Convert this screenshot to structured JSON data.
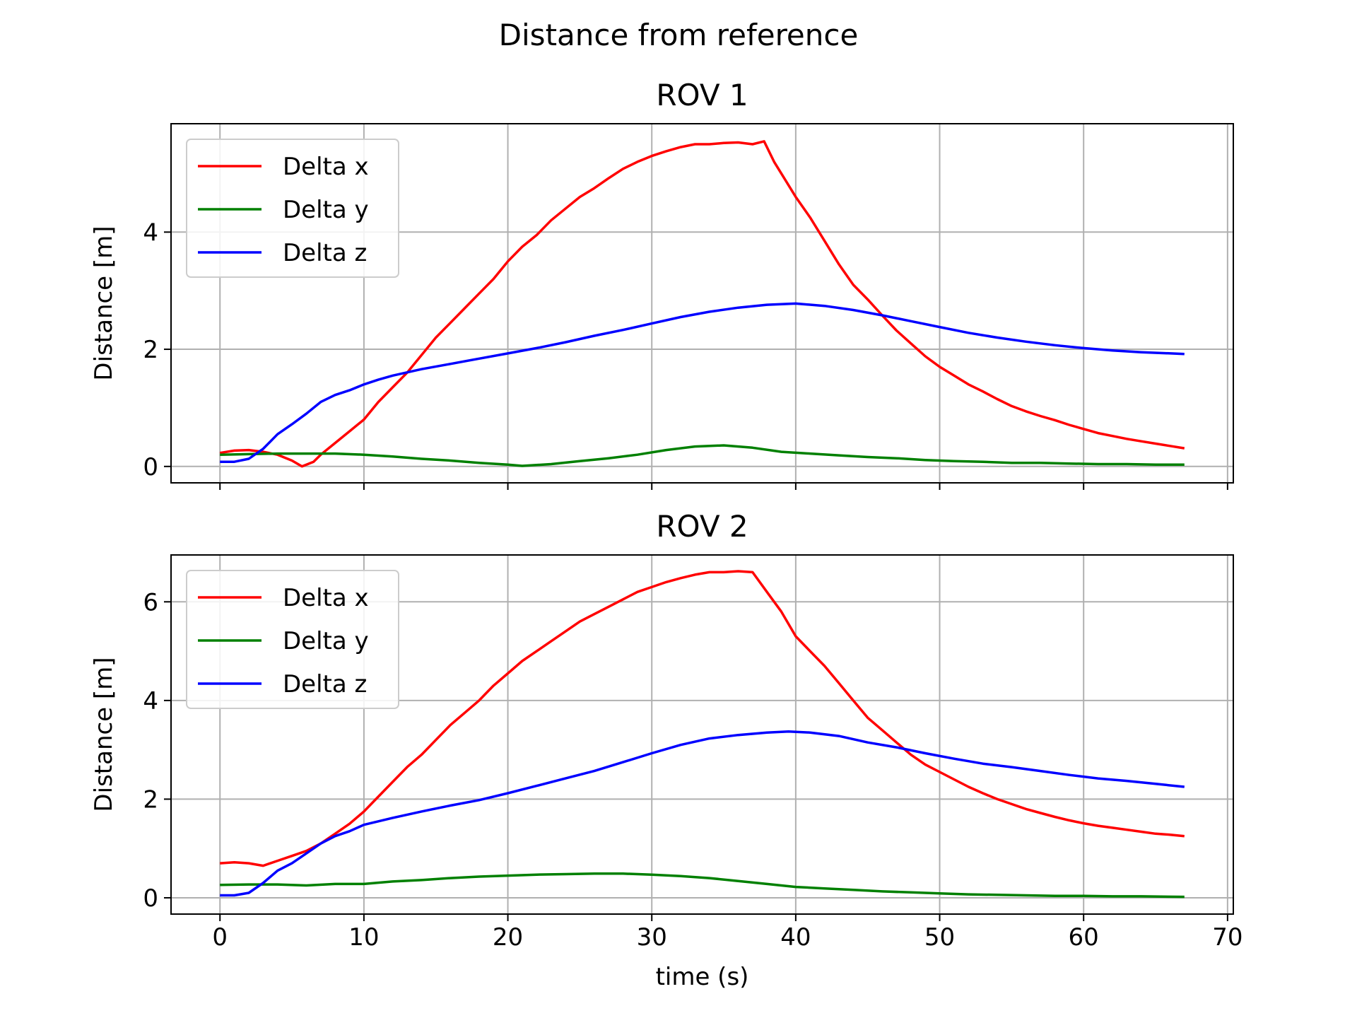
{
  "figure": {
    "title": "Distance from reference"
  },
  "chart_data": [
    {
      "type": "line",
      "title": "ROV 1",
      "xlabel": "",
      "ylabel": "Distance [m]",
      "xlim": [
        -3.4,
        70.4
      ],
      "ylim": [
        -0.28,
        5.85
      ],
      "xticks": [
        0,
        10,
        20,
        30,
        40,
        50,
        60,
        70
      ],
      "yticks": [
        0,
        2,
        4
      ],
      "grid": true,
      "legend": "top-left",
      "show_xticklabels": false,
      "series": [
        {
          "name": "Delta x",
          "color": "#ff0000",
          "x": [
            0,
            1,
            2,
            3,
            4,
            5,
            5.7,
            6.5,
            7,
            8,
            9,
            10,
            11,
            12,
            13,
            14,
            15,
            16,
            17,
            18,
            19,
            20,
            21,
            22,
            23,
            24,
            25,
            26,
            27,
            28,
            29,
            30,
            31,
            32,
            33,
            34,
            35,
            36,
            37,
            37.8,
            38.5,
            39,
            40,
            41,
            42,
            43,
            44,
            45,
            46,
            47,
            48,
            49,
            50,
            51,
            52,
            53,
            54,
            55,
            56,
            57,
            58,
            59,
            60,
            61,
            62,
            63,
            64,
            65,
            66,
            67
          ],
          "y": [
            0.23,
            0.27,
            0.28,
            0.25,
            0.2,
            0.1,
            0.0,
            0.08,
            0.2,
            0.4,
            0.6,
            0.8,
            1.1,
            1.35,
            1.6,
            1.9,
            2.2,
            2.45,
            2.7,
            2.95,
            3.2,
            3.5,
            3.75,
            3.95,
            4.2,
            4.4,
            4.6,
            4.75,
            4.92,
            5.08,
            5.2,
            5.3,
            5.38,
            5.45,
            5.5,
            5.5,
            5.52,
            5.53,
            5.5,
            5.55,
            5.2,
            5.0,
            4.6,
            4.25,
            3.85,
            3.45,
            3.1,
            2.85,
            2.58,
            2.32,
            2.1,
            1.88,
            1.7,
            1.55,
            1.4,
            1.28,
            1.15,
            1.03,
            0.94,
            0.86,
            0.79,
            0.71,
            0.64,
            0.57,
            0.52,
            0.47,
            0.43,
            0.39,
            0.35,
            0.31
          ]
        },
        {
          "name": "Delta y",
          "color": "#008000",
          "x": [
            0,
            2,
            4,
            6,
            8,
            10,
            12,
            14,
            16,
            18,
            20,
            21,
            23,
            25,
            27,
            29,
            31,
            33,
            35,
            37,
            39,
            41,
            43,
            45,
            47,
            49,
            51,
            53,
            55,
            57,
            59,
            61,
            63,
            65,
            67
          ],
          "y": [
            0.2,
            0.21,
            0.22,
            0.22,
            0.22,
            0.2,
            0.17,
            0.13,
            0.1,
            0.06,
            0.03,
            0.01,
            0.04,
            0.09,
            0.14,
            0.2,
            0.28,
            0.34,
            0.36,
            0.32,
            0.25,
            0.22,
            0.19,
            0.16,
            0.14,
            0.11,
            0.09,
            0.08,
            0.06,
            0.06,
            0.05,
            0.04,
            0.04,
            0.03,
            0.03
          ]
        },
        {
          "name": "Delta z",
          "color": "#0000ff",
          "x": [
            0,
            1,
            2,
            3,
            4,
            5,
            6,
            7,
            8,
            9,
            10,
            11,
            12,
            14,
            16,
            18,
            20,
            22,
            24,
            26,
            28,
            30,
            32,
            34,
            36,
            38,
            40,
            42,
            44,
            46,
            48,
            50,
            52,
            54,
            56,
            58,
            60,
            62,
            64,
            67
          ],
          "y": [
            0.08,
            0.08,
            0.13,
            0.3,
            0.55,
            0.72,
            0.9,
            1.1,
            1.22,
            1.3,
            1.4,
            1.48,
            1.55,
            1.66,
            1.75,
            1.84,
            1.93,
            2.02,
            2.12,
            2.23,
            2.33,
            2.44,
            2.55,
            2.64,
            2.71,
            2.76,
            2.78,
            2.74,
            2.67,
            2.58,
            2.48,
            2.38,
            2.28,
            2.2,
            2.13,
            2.07,
            2.02,
            1.98,
            1.95,
            1.92
          ]
        }
      ]
    },
    {
      "type": "line",
      "title": "ROV 2",
      "xlabel": "time (s)",
      "ylabel": "Distance [m]",
      "xlim": [
        -3.4,
        70.4
      ],
      "ylim": [
        -0.33,
        6.95
      ],
      "xticks": [
        0,
        10,
        20,
        30,
        40,
        50,
        60,
        70
      ],
      "yticks": [
        0,
        2,
        4,
        6
      ],
      "grid": true,
      "legend": "top-left",
      "show_xticklabels": true,
      "series": [
        {
          "name": "Delta x",
          "color": "#ff0000",
          "x": [
            0,
            1,
            2,
            3,
            4,
            5,
            6,
            7,
            8,
            9,
            10,
            11,
            12,
            13,
            14,
            15,
            16,
            17,
            18,
            19,
            20,
            21,
            22,
            23,
            24,
            25,
            26,
            27,
            28,
            29,
            30,
            31,
            32,
            33,
            34,
            35,
            36,
            37,
            38,
            39,
            40,
            41,
            42,
            43,
            44,
            45,
            46,
            47,
            48,
            49,
            50,
            51,
            52,
            53,
            54,
            55,
            56,
            57,
            58,
            59,
            60,
            61,
            62,
            63,
            64,
            65,
            66,
            67
          ],
          "y": [
            0.7,
            0.72,
            0.7,
            0.65,
            0.75,
            0.85,
            0.95,
            1.1,
            1.3,
            1.5,
            1.75,
            2.05,
            2.35,
            2.65,
            2.9,
            3.2,
            3.5,
            3.75,
            4.0,
            4.3,
            4.55,
            4.8,
            5.0,
            5.2,
            5.4,
            5.6,
            5.75,
            5.9,
            6.05,
            6.2,
            6.3,
            6.4,
            6.48,
            6.55,
            6.6,
            6.6,
            6.62,
            6.6,
            6.2,
            5.8,
            5.3,
            5.0,
            4.7,
            4.35,
            4.0,
            3.65,
            3.4,
            3.15,
            2.9,
            2.7,
            2.55,
            2.4,
            2.25,
            2.12,
            2.0,
            1.9,
            1.8,
            1.72,
            1.64,
            1.57,
            1.51,
            1.46,
            1.42,
            1.38,
            1.34,
            1.3,
            1.28,
            1.25
          ]
        },
        {
          "name": "Delta y",
          "color": "#008000",
          "x": [
            0,
            2,
            4,
            6,
            8,
            10,
            12,
            14,
            16,
            18,
            20,
            22,
            24,
            26,
            28,
            30,
            32,
            34,
            36,
            38,
            40,
            42,
            44,
            46,
            48,
            50,
            52,
            54,
            56,
            58,
            60,
            62,
            64,
            67
          ],
          "y": [
            0.26,
            0.27,
            0.27,
            0.25,
            0.28,
            0.28,
            0.33,
            0.36,
            0.4,
            0.43,
            0.45,
            0.47,
            0.48,
            0.49,
            0.49,
            0.47,
            0.44,
            0.4,
            0.34,
            0.28,
            0.22,
            0.19,
            0.16,
            0.13,
            0.11,
            0.09,
            0.07,
            0.06,
            0.05,
            0.04,
            0.04,
            0.03,
            0.03,
            0.02
          ]
        },
        {
          "name": "Delta z",
          "color": "#0000ff",
          "x": [
            0,
            1,
            2,
            3,
            4,
            5,
            6,
            7,
            8,
            9,
            10,
            11,
            12,
            14,
            16,
            18,
            20,
            22,
            24,
            26,
            28,
            30,
            32,
            34,
            36,
            38,
            39.5,
            41,
            43,
            45,
            47,
            49,
            51,
            53,
            55,
            57,
            59,
            61,
            63,
            65,
            67
          ],
          "y": [
            0.05,
            0.05,
            0.1,
            0.3,
            0.55,
            0.7,
            0.9,
            1.1,
            1.25,
            1.35,
            1.48,
            1.55,
            1.62,
            1.75,
            1.87,
            1.98,
            2.12,
            2.27,
            2.42,
            2.57,
            2.75,
            2.93,
            3.1,
            3.23,
            3.3,
            3.35,
            3.37,
            3.35,
            3.28,
            3.15,
            3.05,
            2.93,
            2.82,
            2.72,
            2.65,
            2.57,
            2.49,
            2.42,
            2.37,
            2.31,
            2.25
          ]
        }
      ]
    }
  ]
}
